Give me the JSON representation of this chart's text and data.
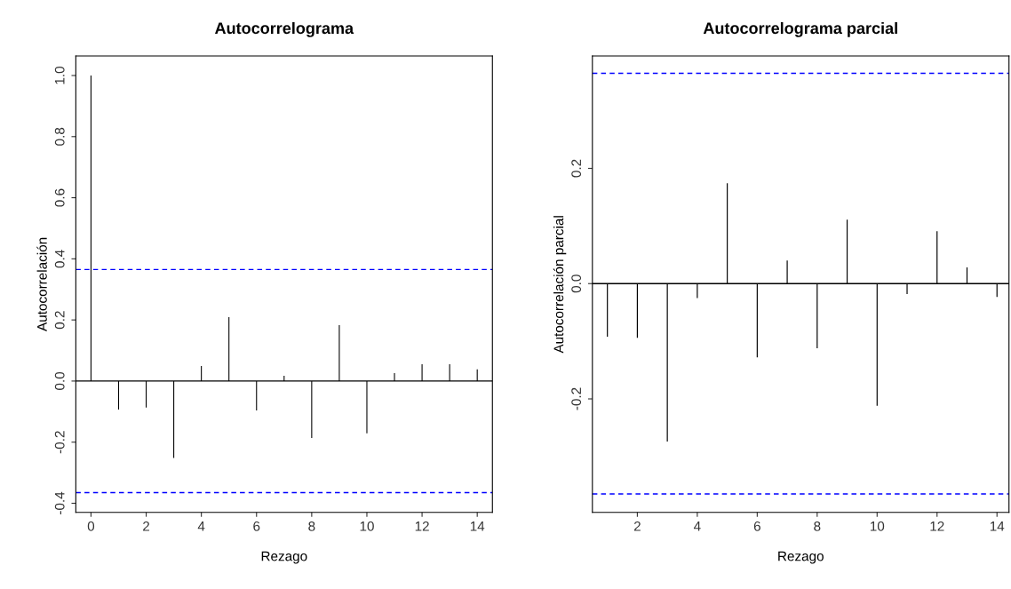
{
  "chart_data": [
    {
      "type": "bar",
      "title": "Autocorrelograma",
      "xlabel": "Rezago",
      "ylabel": "Autocorrelación",
      "x": [
        0,
        1,
        2,
        3,
        4,
        5,
        6,
        7,
        8,
        9,
        10,
        11,
        12,
        13,
        14
      ],
      "series": [
        {
          "color": "#000000",
          "values": [
            1.0,
            -0.093,
            -0.087,
            -0.252,
            0.049,
            0.209,
            -0.096,
            0.017,
            -0.186,
            0.183,
            -0.171,
            0.026,
            0.055,
            0.055,
            0.038
          ]
        }
      ],
      "xlim": [
        -0.55,
        14.55
      ],
      "ylim": [
        -0.43,
        1.064
      ],
      "xticks": [
        0,
        2,
        4,
        6,
        8,
        10,
        12,
        14
      ],
      "yticks": [
        {
          "value": -0.4,
          "label": "-0.4"
        },
        {
          "value": -0.2,
          "label": "-0.2"
        },
        {
          "value": 0,
          "label": "0.0"
        },
        {
          "value": 0.2,
          "label": "0.2"
        },
        {
          "value": 0.4,
          "label": "0.4"
        },
        {
          "value": 0.6,
          "label": "0.6"
        },
        {
          "value": 0.8,
          "label": "0.8"
        },
        {
          "value": 1.0,
          "label": "1.0"
        }
      ],
      "ref_lines": [
        {
          "axis": "y",
          "value": 0,
          "color": "#000000",
          "line_style": "solid"
        },
        {
          "axis": "y",
          "value": 0.365,
          "color": "#0000ff",
          "line_style": "dashed"
        },
        {
          "axis": "y",
          "value": -0.365,
          "color": "#0000ff",
          "line_style": "dashed"
        }
      ],
      "grid": false,
      "legend": false
    },
    {
      "type": "bar",
      "title": "Autocorrelograma parcial",
      "xlabel": "Rezago",
      "ylabel": "Autocorrelación parcial",
      "x": [
        1,
        2,
        3,
        4,
        5,
        6,
        7,
        8,
        9,
        10,
        11,
        12,
        13,
        14
      ],
      "series": [
        {
          "color": "#000000",
          "values": [
            -0.092,
            -0.094,
            -0.274,
            -0.025,
            0.174,
            -0.128,
            0.04,
            -0.112,
            0.111,
            -0.212,
            -0.018,
            0.091,
            0.028,
            -0.023
          ]
        }
      ],
      "xlim": [
        0.5,
        14.4
      ],
      "ylim": [
        -0.397,
        0.395
      ],
      "xticks": [
        2,
        4,
        6,
        8,
        10,
        12,
        14
      ],
      "yticks": [
        {
          "value": -0.2,
          "label": "-0.2"
        },
        {
          "value": 0,
          "label": "0.0"
        },
        {
          "value": 0.2,
          "label": "0.2"
        }
      ],
      "ref_lines": [
        {
          "axis": "y",
          "value": 0,
          "color": "#000000",
          "line_style": "solid"
        },
        {
          "axis": "y",
          "value": 0.365,
          "color": "#0000ff",
          "line_style": "dashed"
        },
        {
          "axis": "y",
          "value": -0.365,
          "color": "#0000ff",
          "line_style": "dashed"
        }
      ],
      "grid": false,
      "legend": false
    }
  ]
}
